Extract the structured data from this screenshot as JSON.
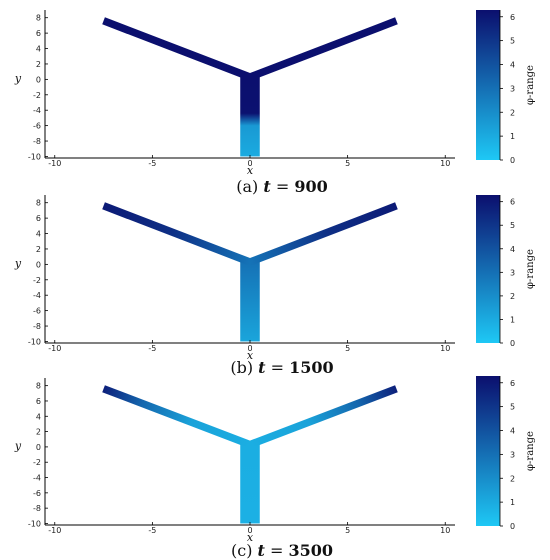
{
  "colors": {
    "low": "#1ec8f5",
    "high": "#0b0f6e",
    "axis": "#000000"
  },
  "chart_data": [
    {
      "type": "heatmap",
      "caption_prefix": "(a) ",
      "caption_t": "900",
      "xlabel": "x",
      "ylabel": "y",
      "colorbar_label": "φ-range",
      "xlim": [
        -10.5,
        10.5
      ],
      "ylim": [
        -10.2,
        9
      ],
      "xticks": [
        -10,
        -5,
        0,
        5,
        10
      ],
      "yticks": [
        -10,
        -8,
        -6,
        -4,
        -2,
        0,
        2,
        4,
        6,
        8
      ],
      "clim": [
        0,
        6.2832
      ],
      "cbar_ticks": [
        0,
        1,
        2,
        3,
        4,
        5,
        6
      ],
      "stem_profile": [
        [
          -10,
          1.0
        ],
        [
          -6,
          1.6
        ],
        [
          -4.4,
          6.2
        ],
        [
          0,
          6.28
        ]
      ],
      "arm_profile": [
        [
          0,
          6.28
        ],
        [
          7.5,
          6.28
        ]
      ]
    },
    {
      "type": "heatmap",
      "caption_prefix": "(b) ",
      "caption_t": "1500",
      "xlabel": "x",
      "ylabel": "y",
      "colorbar_label": "φ-range",
      "xlim": [
        -10.5,
        10.5
      ],
      "ylim": [
        -10.2,
        9
      ],
      "xticks": [
        -10,
        -5,
        0,
        5,
        10
      ],
      "yticks": [
        -10,
        -8,
        -6,
        -4,
        -2,
        0,
        2,
        4,
        6,
        8
      ],
      "clim": [
        0,
        6.2832
      ],
      "cbar_ticks": [
        0,
        1,
        2,
        3,
        4,
        5,
        6
      ],
      "stem_profile": [
        [
          -10,
          1.2
        ],
        [
          0,
          2.9
        ]
      ],
      "arm_profile": [
        [
          0,
          2.9
        ],
        [
          4,
          5.2
        ],
        [
          7.5,
          5.9
        ]
      ]
    },
    {
      "type": "heatmap",
      "caption_prefix": "(c) ",
      "caption_t": "3500",
      "xlabel": "x",
      "ylabel": "y",
      "colorbar_label": "φ-range",
      "xlim": [
        -10.5,
        10.5
      ],
      "ylim": [
        -10.2,
        9
      ],
      "xticks": [
        -10,
        -5,
        0,
        5,
        10
      ],
      "yticks": [
        -10,
        -8,
        -6,
        -4,
        -2,
        0,
        2,
        4,
        6,
        8
      ],
      "clim": [
        0,
        6.2832
      ],
      "cbar_ticks": [
        0,
        1,
        2,
        3,
        4,
        5,
        6
      ],
      "stem_profile": [
        [
          -10,
          0.8
        ],
        [
          0,
          0.9
        ]
      ],
      "arm_profile": [
        [
          0,
          0.9
        ],
        [
          3,
          1.3
        ],
        [
          5.5,
          3.3
        ],
        [
          7.5,
          5.7
        ]
      ]
    }
  ]
}
